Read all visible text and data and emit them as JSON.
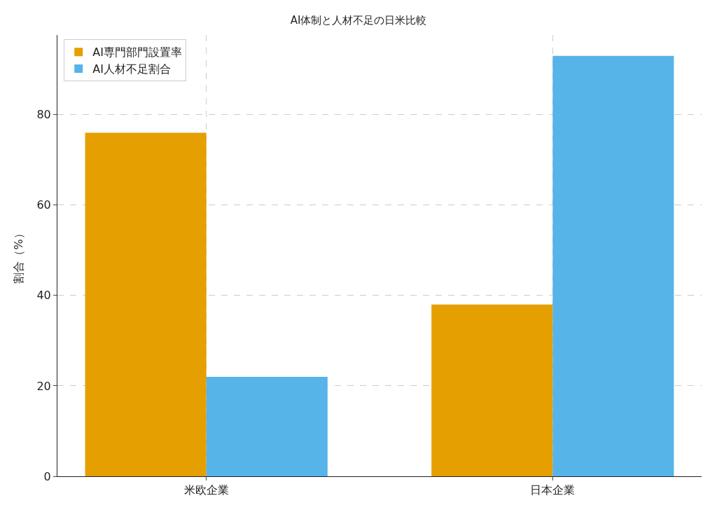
{
  "chart_data": {
    "type": "bar",
    "title": "AI体制と人材不足の日米比較",
    "ylabel": "割合（%）",
    "categories": [
      "米欧企業",
      "日本企業"
    ],
    "series": [
      {
        "name": "AI専門部門設置率",
        "color": "#e69f00",
        "values": [
          76,
          38
        ]
      },
      {
        "name": "AI人材不足割合",
        "color": "#56b4e9",
        "values": [
          22,
          93
        ]
      }
    ],
    "ylim": [
      0,
      97.6
    ],
    "yticks": [
      0,
      20,
      40,
      60,
      80
    ],
    "grid": true,
    "legend": "top left"
  }
}
